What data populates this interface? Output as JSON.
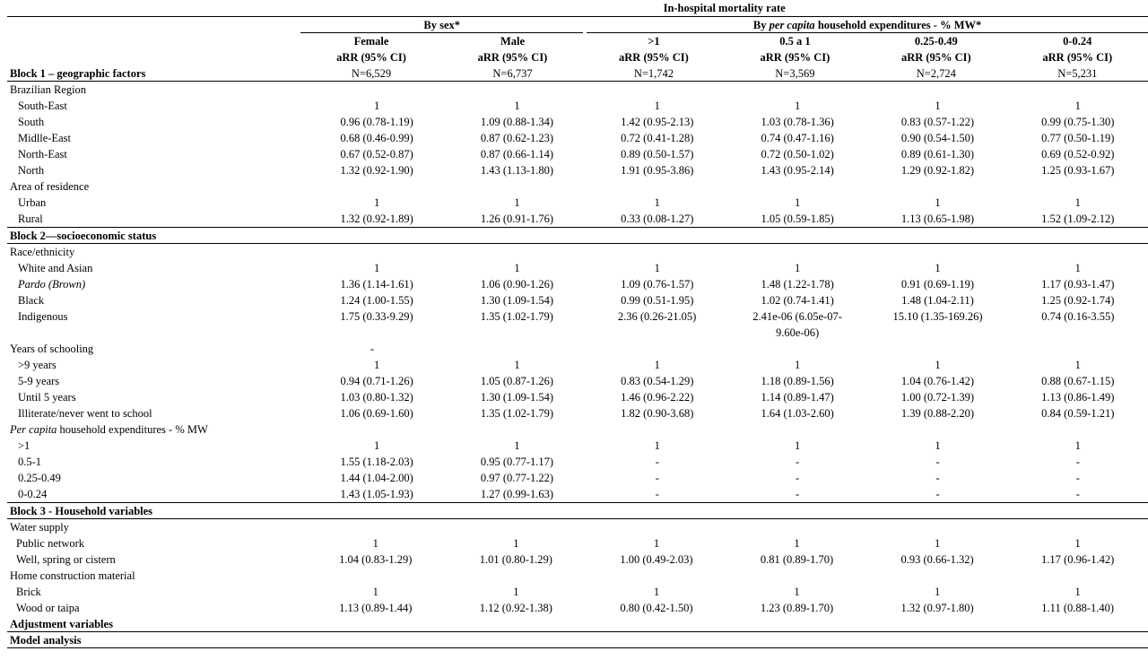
{
  "header": {
    "title": "In-hospital mortality rate",
    "by_sex": "By sex*",
    "by_pc_prefix": "By ",
    "by_pc_italic": "per capita",
    "by_pc_suffix": " household expenditures - % MW*",
    "columns": [
      {
        "label": "Female",
        "stat": "aRR (95% CI)",
        "n": "N=6,529"
      },
      {
        "label": "Male",
        "stat": "aRR (95% CI)",
        "n": "N=6,737"
      },
      {
        "label": ">1",
        "stat": "aRR (95% CI)",
        "n": "N=1,742"
      },
      {
        "label": "0.5 a 1",
        "stat": "aRR (95% CI)",
        "n": "N=3,569"
      },
      {
        "label": "0.25-0.49",
        "stat": "aRR (95% CI)",
        "n": "N=2,724"
      },
      {
        "label": "0-0.24",
        "stat": "aRR (95% CI)",
        "n": "N=5,231"
      }
    ]
  },
  "block1": {
    "title": "Block 1 – geographic factors",
    "region": {
      "label": "Brazilian Region",
      "rows": [
        {
          "label": "South-East",
          "v": [
            "1",
            "1",
            "1",
            "1",
            "1",
            "1"
          ]
        },
        {
          "label": "South",
          "v": [
            "0.96 (0.78-1.19)",
            "1.09 (0.88-1.34)",
            "1.42 (0.95-2.13)",
            "1.03 (0.78-1.36)",
            "0.83 (0.57-1.22)",
            "0.99 (0.75-1.30)"
          ]
        },
        {
          "label": "Midlle-East",
          "v": [
            "0.68 (0.46-0.99)",
            "0.87 (0.62-1.23)",
            "0.72 (0.41-1.28)",
            "0.74 (0.47-1.16)",
            "0.90 (0.54-1.50)",
            "0.77 (0.50-1.19)"
          ]
        },
        {
          "label": "North-East",
          "v": [
            "0.67 (0.52-0.87)",
            "0.87 (0.66-1.14)",
            "0.89 (0.50-1.57)",
            "0.72 (0.50-1.02)",
            "0.89 (0.61-1.30)",
            "0.69 (0.52-0.92)"
          ]
        },
        {
          "label": "North",
          "v": [
            "1.32 (0.92-1.90)",
            "1.43 (1.13-1.80)",
            "1.91 (0.95-3.86)",
            "1.43 (0.95-2.14)",
            "1.29 (0.92-1.82)",
            "1.25 (0.93-1.67)"
          ]
        }
      ]
    },
    "area": {
      "label": "Area of residence",
      "rows": [
        {
          "label": "Urban",
          "v": [
            "1",
            "1",
            "1",
            "1",
            "1",
            "1"
          ]
        },
        {
          "label": "Rural",
          "v": [
            "1.32 (0.92-1.89)",
            "1.26 (0.91-1.76)",
            "0.33 (0.08-1.27)",
            "1.05 (0.59-1.85)",
            "1.13 (0.65-1.98)",
            "1.52 (1.09-2.12)"
          ]
        }
      ]
    }
  },
  "block2": {
    "title": "Block 2—socioeconomic status",
    "race": {
      "label": "Race/ethnicity",
      "rows": [
        {
          "label": "White and Asian",
          "v": [
            "1",
            "1",
            "1",
            "1",
            "1",
            "1"
          ]
        },
        {
          "label": "Pardo (Brown)",
          "v": [
            "1.36 (1.14-1.61)",
            "1.06 (0.90-1.26)",
            "1.09 (0.76-1.57)",
            "1.48 (1.22-1.78)",
            "0.91 (0.69-1.19)",
            "1.17 (0.93-1.47)"
          ]
        },
        {
          "label": "Black",
          "v": [
            "1.24 (1.00-1.55)",
            "1.30 (1.09-1.54)",
            "0.99 (0.51-1.95)",
            "1.02 (0.74-1.41)",
            "1.48 (1.04-2.11)",
            "1.25 (0.92-1.74)"
          ]
        }
      ],
      "indigenous": {
        "label": "Indigenous",
        "v": [
          "1.75 (0.33-9.29)",
          "1.35 (1.02-1.79)",
          "2.36 (0.26-21.05)",
          "2.41e-06 (6.05e-07-9.60e-06)",
          "15.10 (1.35-169.26)",
          "0.74 (0.16-3.55)"
        ]
      }
    },
    "schooling": {
      "label": "Years of schooling",
      "dash": "-",
      "rows": [
        {
          "label": ">9 years",
          "v": [
            "1",
            "1",
            "1",
            "1",
            "1",
            "1"
          ]
        },
        {
          "label": "5-9 years",
          "v": [
            "0.94 (0.71-1.26)",
            "1.05 (0.87-1.26)",
            "0.83 (0.54-1.29)",
            "1.18 (0.89-1.56)",
            "1.04 (0.76-1.42)",
            "0.88 (0.67-1.15)"
          ]
        },
        {
          "label": "Until 5 years",
          "v": [
            "1.03 (0.80-1.32)",
            "1.30 (1.09-1.54)",
            "1.46 (0.96-2.22)",
            "1.14 (0.89-1.47)",
            "1.00 (0.72-1.39)",
            "1.13 (0.86-1.49)"
          ]
        },
        {
          "label": "Illiterate/never went to school",
          "v": [
            "1.06 (0.69-1.60)",
            "1.35 (1.02-1.79)",
            "1.82 (0.90-3.68)",
            "1.64 (1.03-2.60)",
            "1.39 (0.88-2.20)",
            "0.84 (0.59-1.21)"
          ]
        }
      ]
    },
    "expenditure": {
      "label_italic": "Per capita",
      "label_rest": " household expenditures - % MW",
      "rows": [
        {
          "label": ">1",
          "v": [
            "1",
            "1",
            "1",
            "1",
            "1",
            "1"
          ]
        },
        {
          "label": "0.5-1",
          "v": [
            "1.55 (1.18-2.03)",
            "0.95 (0.77-1.17)",
            "-",
            "-",
            "-",
            "-"
          ]
        },
        {
          "label": "0.25-0.49",
          "v": [
            "1.44 (1.04-2.00)",
            "0.97 (0.77-1.22)",
            "-",
            "-",
            "-",
            "-"
          ]
        },
        {
          "label": "0-0.24",
          "v": [
            "1.43 (1.05-1.93)",
            "1.27 (0.99-1.63)",
            "-",
            "-",
            "-",
            "-"
          ]
        }
      ]
    }
  },
  "block3": {
    "title": "Block 3 - Household variables",
    "water": {
      "label": "Water supply",
      "rows": [
        {
          "label": "Public network",
          "v": [
            "1",
            "1",
            "1",
            "1",
            "1",
            "1"
          ]
        },
        {
          "label": "Well, spring or cistern",
          "v": [
            "1.04 (0.83-1.29)",
            "1.01 (0.80-1.29)",
            "1.00 (0.49-2.03)",
            "0.81 (0.89-1.70)",
            "0.93 (0.66-1.32)",
            "1.17 (0.96-1.42)"
          ]
        }
      ]
    },
    "home": {
      "label": "Home construction material",
      "rows": [
        {
          "label": "Brick",
          "v": [
            "1",
            "1",
            "1",
            "1",
            "1",
            "1"
          ]
        },
        {
          "label": "Wood or taipa",
          "v": [
            "1.13 (0.89-1.44)",
            "1.12 (0.92-1.38)",
            "0.80 (0.42-1.50)",
            "1.23 (0.89-1.70)",
            "1.32 (0.97-1.80)",
            "1.11 (0.88-1.40)"
          ]
        }
      ]
    }
  },
  "footer": {
    "adjustment": "Adjustment variables",
    "model": "Model analysis"
  }
}
